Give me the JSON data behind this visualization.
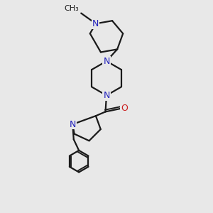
{
  "bg_color": "#e8e8e8",
  "bond_color": "#1a1a1a",
  "N_color": "#2222bb",
  "O_color": "#cc2020",
  "bond_width": 1.6,
  "font_size_N": 9,
  "font_size_O": 9,
  "font_size_CH3": 8,
  "figsize": [
    3.0,
    3.0
  ],
  "dpi": 100,
  "xlim": [
    0,
    10
  ],
  "ylim": [
    0,
    10
  ]
}
